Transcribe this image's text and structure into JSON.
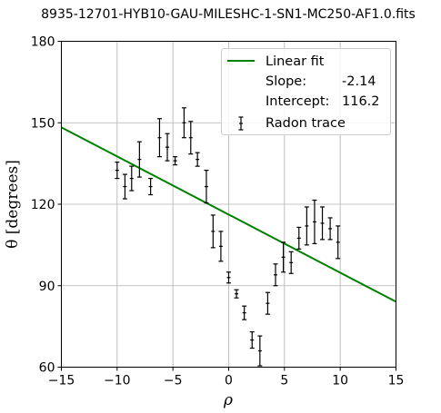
{
  "chart_data": {
    "type": "scatter",
    "title": "8935-12701-HYB10-GAU-MILESHC-1-SN1-MC250-AF1.0.fits",
    "xlabel": "ρ",
    "ylabel": "θ [degrees]",
    "xlim": [
      -15,
      15
    ],
    "ylim": [
      60,
      180
    ],
    "xticks": [
      -15,
      -10,
      -5,
      0,
      5,
      10,
      15
    ],
    "xtick_labels": [
      "−15",
      "−10",
      "−5",
      "0",
      "5",
      "10",
      "15"
    ],
    "yticks": [
      60,
      90,
      120,
      150,
      180
    ],
    "ytick_labels": [
      "60",
      "90",
      "120",
      "150",
      "180"
    ],
    "grid": true,
    "legend_placement": "top-right",
    "fit": {
      "name": "Linear fit",
      "color": "#008000",
      "slope": -2.14,
      "intercept": 116.2,
      "slope_label": "Slope:",
      "slope_text": "-2.14",
      "intercept_label": "Intercept:",
      "intercept_text": "116.2"
    },
    "series": [
      {
        "name": "Radon trace",
        "color": "#000000",
        "x": [
          -10,
          -9.3,
          -8.7,
          -8,
          -7,
          -6.2,
          -5.5,
          -4.8,
          -4,
          -3.4,
          -2.8,
          -2,
          -1.4,
          -0.7,
          0,
          0.7,
          1.4,
          2.1,
          2.8,
          3.5,
          4.2,
          4.9,
          5.6,
          6.3,
          7,
          7.7,
          8.4,
          9.1,
          9.8
        ],
        "y": [
          132.5,
          126.5,
          129.5,
          136.5,
          126.5,
          144.5,
          141,
          136,
          150,
          144.5,
          136.5,
          126.5,
          110,
          104.5,
          93,
          87,
          80,
          70,
          66,
          83.5,
          94,
          100.5,
          98.5,
          107.5,
          112,
          113.5,
          113,
          111,
          106
        ],
        "yerr": [
          3,
          4.5,
          4.5,
          6.5,
          3,
          7,
          5,
          1.5,
          5.5,
          6,
          2.5,
          6,
          6,
          5.5,
          2,
          1.5,
          2.5,
          3,
          5.5,
          4,
          4,
          5.5,
          4,
          4,
          7,
          8,
          6,
          4,
          6
        ]
      }
    ]
  }
}
